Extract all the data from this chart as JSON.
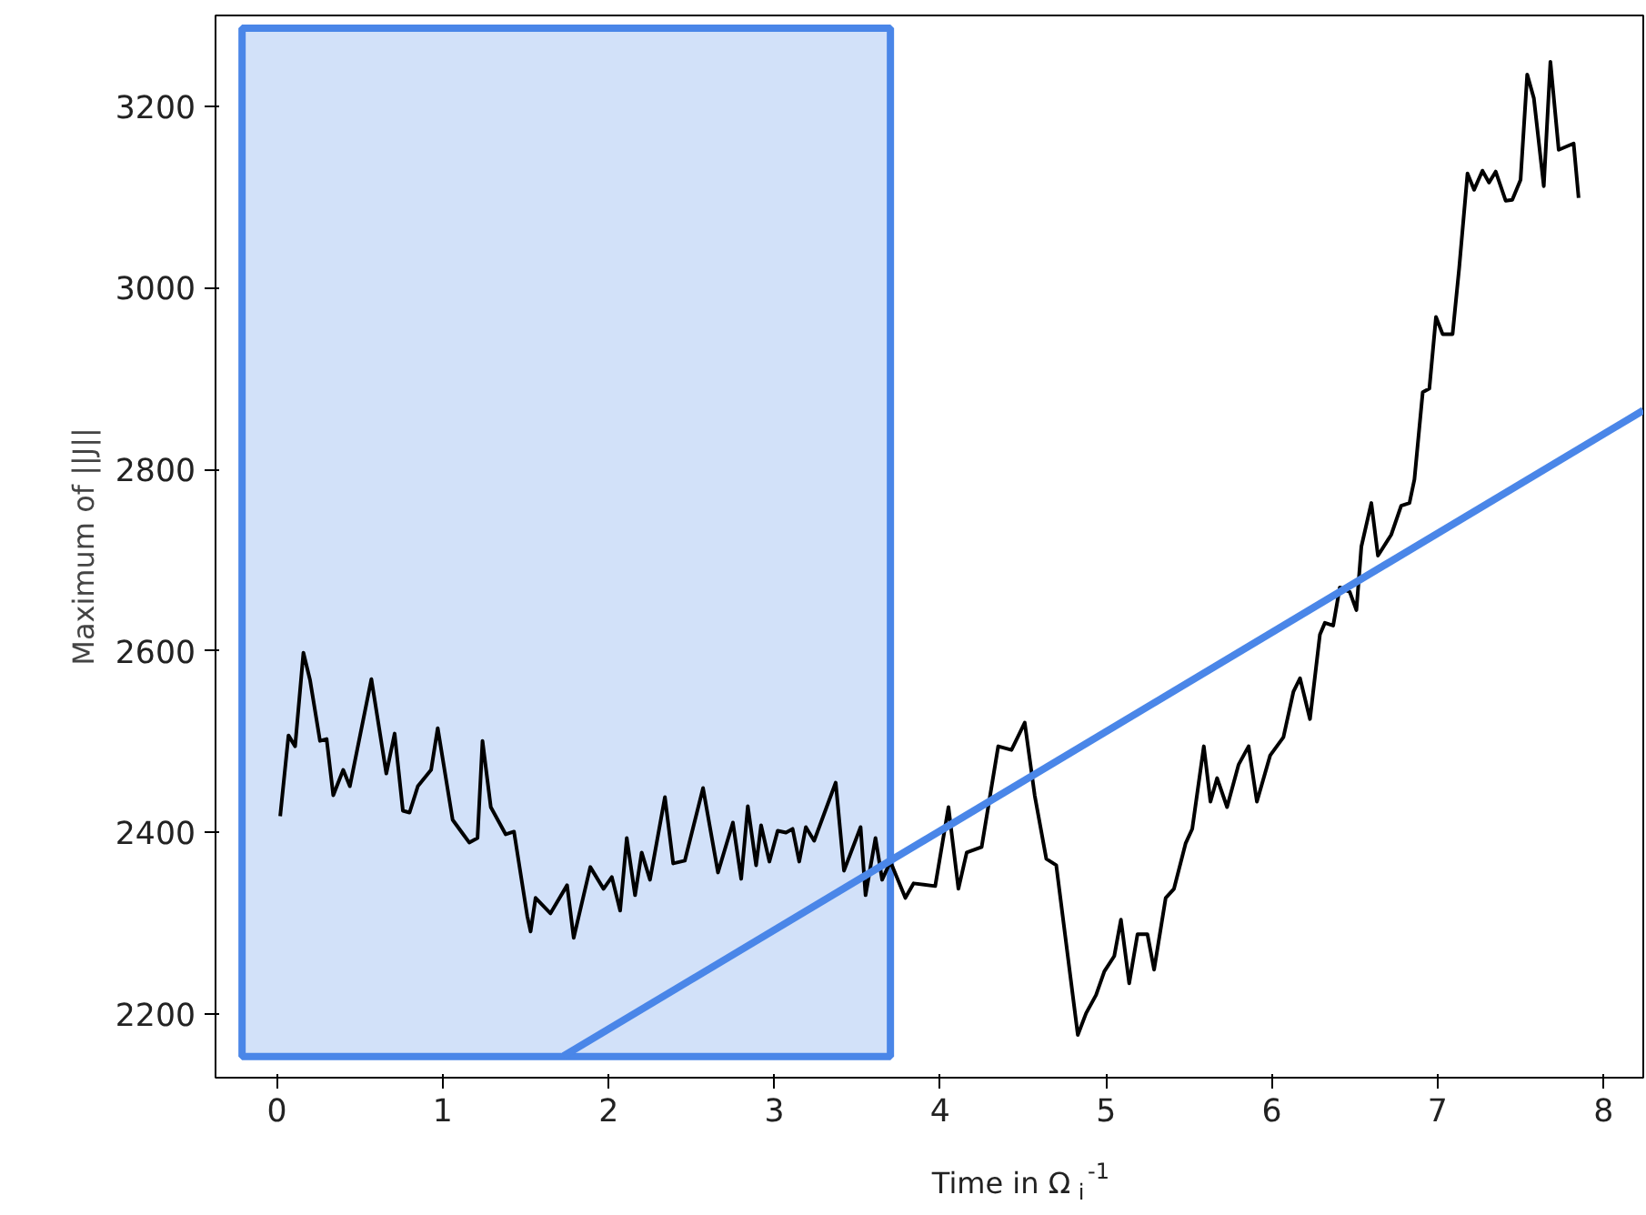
{
  "chart_data": {
    "type": "line",
    "xlabel": "Time in Ω$_{i}$$^{-1}$",
    "ylabel": "Maximum of ||J||",
    "xlim": [
      -0.37,
      8.24
    ],
    "ylim": [
      2130,
      3300
    ],
    "xticks": [
      0,
      1,
      2,
      3,
      4,
      5,
      6,
      7,
      8
    ],
    "yticks": [
      2200,
      2400,
      2600,
      2800,
      3000,
      3200
    ],
    "grid": false,
    "marker": "none",
    "line_style": "solid",
    "bands": [
      {
        "axis": "x",
        "from": -0.21,
        "to": 3.7,
        "label": null,
        "color": "#4a86e8"
      }
    ],
    "series": [
      {
        "color": "#000000",
        "x": [
          0.02,
          0.07,
          0.11,
          0.16,
          0.2,
          0.26,
          0.3,
          0.34,
          0.4,
          0.44,
          0.57,
          0.66,
          0.71,
          0.76,
          0.8,
          0.85,
          0.93,
          0.97,
          1.06,
          1.16,
          1.21,
          1.24,
          1.29,
          1.38,
          1.43,
          1.51,
          1.53,
          1.56,
          1.65,
          1.75,
          1.79,
          1.89,
          1.97,
          2.02,
          2.07,
          2.11,
          2.16,
          2.2,
          2.25,
          2.34,
          2.39,
          2.46,
          2.57,
          2.66,
          2.75,
          2.8,
          2.84,
          2.89,
          2.92,
          2.97,
          3.02,
          3.07,
          3.11,
          3.15,
          3.19,
          3.24,
          3.37,
          3.42,
          3.52,
          3.55,
          3.61,
          3.65,
          3.7,
          3.79,
          3.84,
          3.97,
          4.05,
          4.11,
          4.16,
          4.25,
          4.35,
          4.43,
          4.51,
          4.57,
          4.64,
          4.7,
          4.83,
          4.88,
          4.94,
          4.99,
          5.05,
          5.09,
          5.14,
          5.19,
          5.25,
          5.29,
          5.36,
          5.41,
          5.48,
          5.52,
          5.59,
          5.63,
          5.67,
          5.73,
          5.8,
          5.86,
          5.91,
          5.99,
          6.07,
          6.13,
          6.17,
          6.23,
          6.29,
          6.32,
          6.37,
          6.41,
          6.47,
          6.51,
          6.54,
          6.6,
          6.64,
          6.72,
          6.78,
          6.83,
          6.86,
          6.91,
          6.95,
          6.99,
          7.03,
          7.09,
          7.13,
          7.18,
          7.22,
          7.27,
          7.31,
          7.35,
          7.41,
          7.45,
          7.5,
          7.54,
          7.58,
          7.64,
          7.68,
          7.73,
          7.82,
          7.85
        ],
        "values": [
          2418,
          2507,
          2495,
          2598,
          2568,
          2501,
          2503,
          2441,
          2469,
          2451,
          2569,
          2465,
          2509,
          2424,
          2422,
          2451,
          2469,
          2515,
          2414,
          2389,
          2394,
          2501,
          2428,
          2398,
          2401,
          2308,
          2291,
          2328,
          2311,
          2342,
          2284,
          2362,
          2338,
          2351,
          2314,
          2394,
          2331,
          2378,
          2348,
          2439,
          2366,
          2369,
          2449,
          2356,
          2411,
          2349,
          2429,
          2364,
          2408,
          2368,
          2402,
          2400,
          2404,
          2368,
          2406,
          2391,
          2455,
          2358,
          2406,
          2331,
          2394,
          2348,
          2368,
          2328,
          2344,
          2341,
          2428,
          2338,
          2378,
          2384,
          2495,
          2491,
          2521,
          2441,
          2371,
          2364,
          2177,
          2201,
          2221,
          2247,
          2264,
          2304,
          2234,
          2288,
          2288,
          2249,
          2328,
          2338,
          2388,
          2404,
          2495,
          2434,
          2460,
          2428,
          2475,
          2495,
          2434,
          2485,
          2505,
          2555,
          2570,
          2525,
          2618,
          2631,
          2628,
          2670,
          2665,
          2645,
          2715,
          2763,
          2705,
          2728,
          2760,
          2763,
          2789,
          2885,
          2889,
          2968,
          2949,
          2949,
          3022,
          3126,
          3108,
          3129,
          3116,
          3128,
          3096,
          3097,
          3119,
          3235,
          3209,
          3112,
          3249,
          3152,
          3159,
          3099
        ]
      },
      {
        "type": "line",
        "color": "#4a86e8",
        "x": [
          1.73,
          8.24
        ],
        "values": [
          2154,
          2865
        ]
      }
    ]
  }
}
